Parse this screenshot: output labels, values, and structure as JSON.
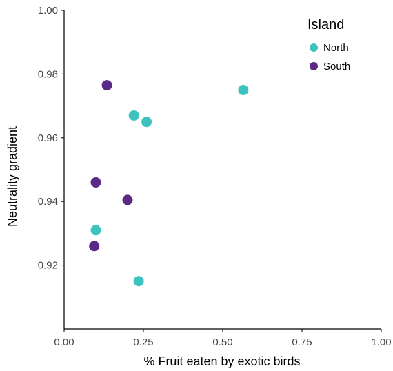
{
  "chart_data": {
    "type": "scatter",
    "title": "",
    "xlabel": "% Fruit eaten by exotic birds",
    "ylabel": "Neutrality gradient",
    "xlim": [
      0,
      1
    ],
    "ylim": [
      0.9,
      1.0
    ],
    "x_ticks": [
      "0.00",
      "0.25",
      "0.50",
      "0.75",
      "1.00"
    ],
    "y_ticks": [
      "0.92",
      "0.94",
      "0.96",
      "0.98",
      "1.00"
    ],
    "grid": false,
    "legend": {
      "title": "Island",
      "placement": "top-right"
    },
    "series": [
      {
        "name": "North",
        "color": "#3cc3bd",
        "points": [
          {
            "x": 0.1,
            "y": 0.931
          },
          {
            "x": 0.22,
            "y": 0.967
          },
          {
            "x": 0.26,
            "y": 0.965
          },
          {
            "x": 0.235,
            "y": 0.915
          },
          {
            "x": 0.565,
            "y": 0.975
          }
        ]
      },
      {
        "name": "South",
        "color": "#5b2a86",
        "points": [
          {
            "x": 0.135,
            "y": 0.9765
          },
          {
            "x": 0.1,
            "y": 0.946
          },
          {
            "x": 0.095,
            "y": 0.926
          },
          {
            "x": 0.2,
            "y": 0.9405
          }
        ]
      }
    ]
  }
}
